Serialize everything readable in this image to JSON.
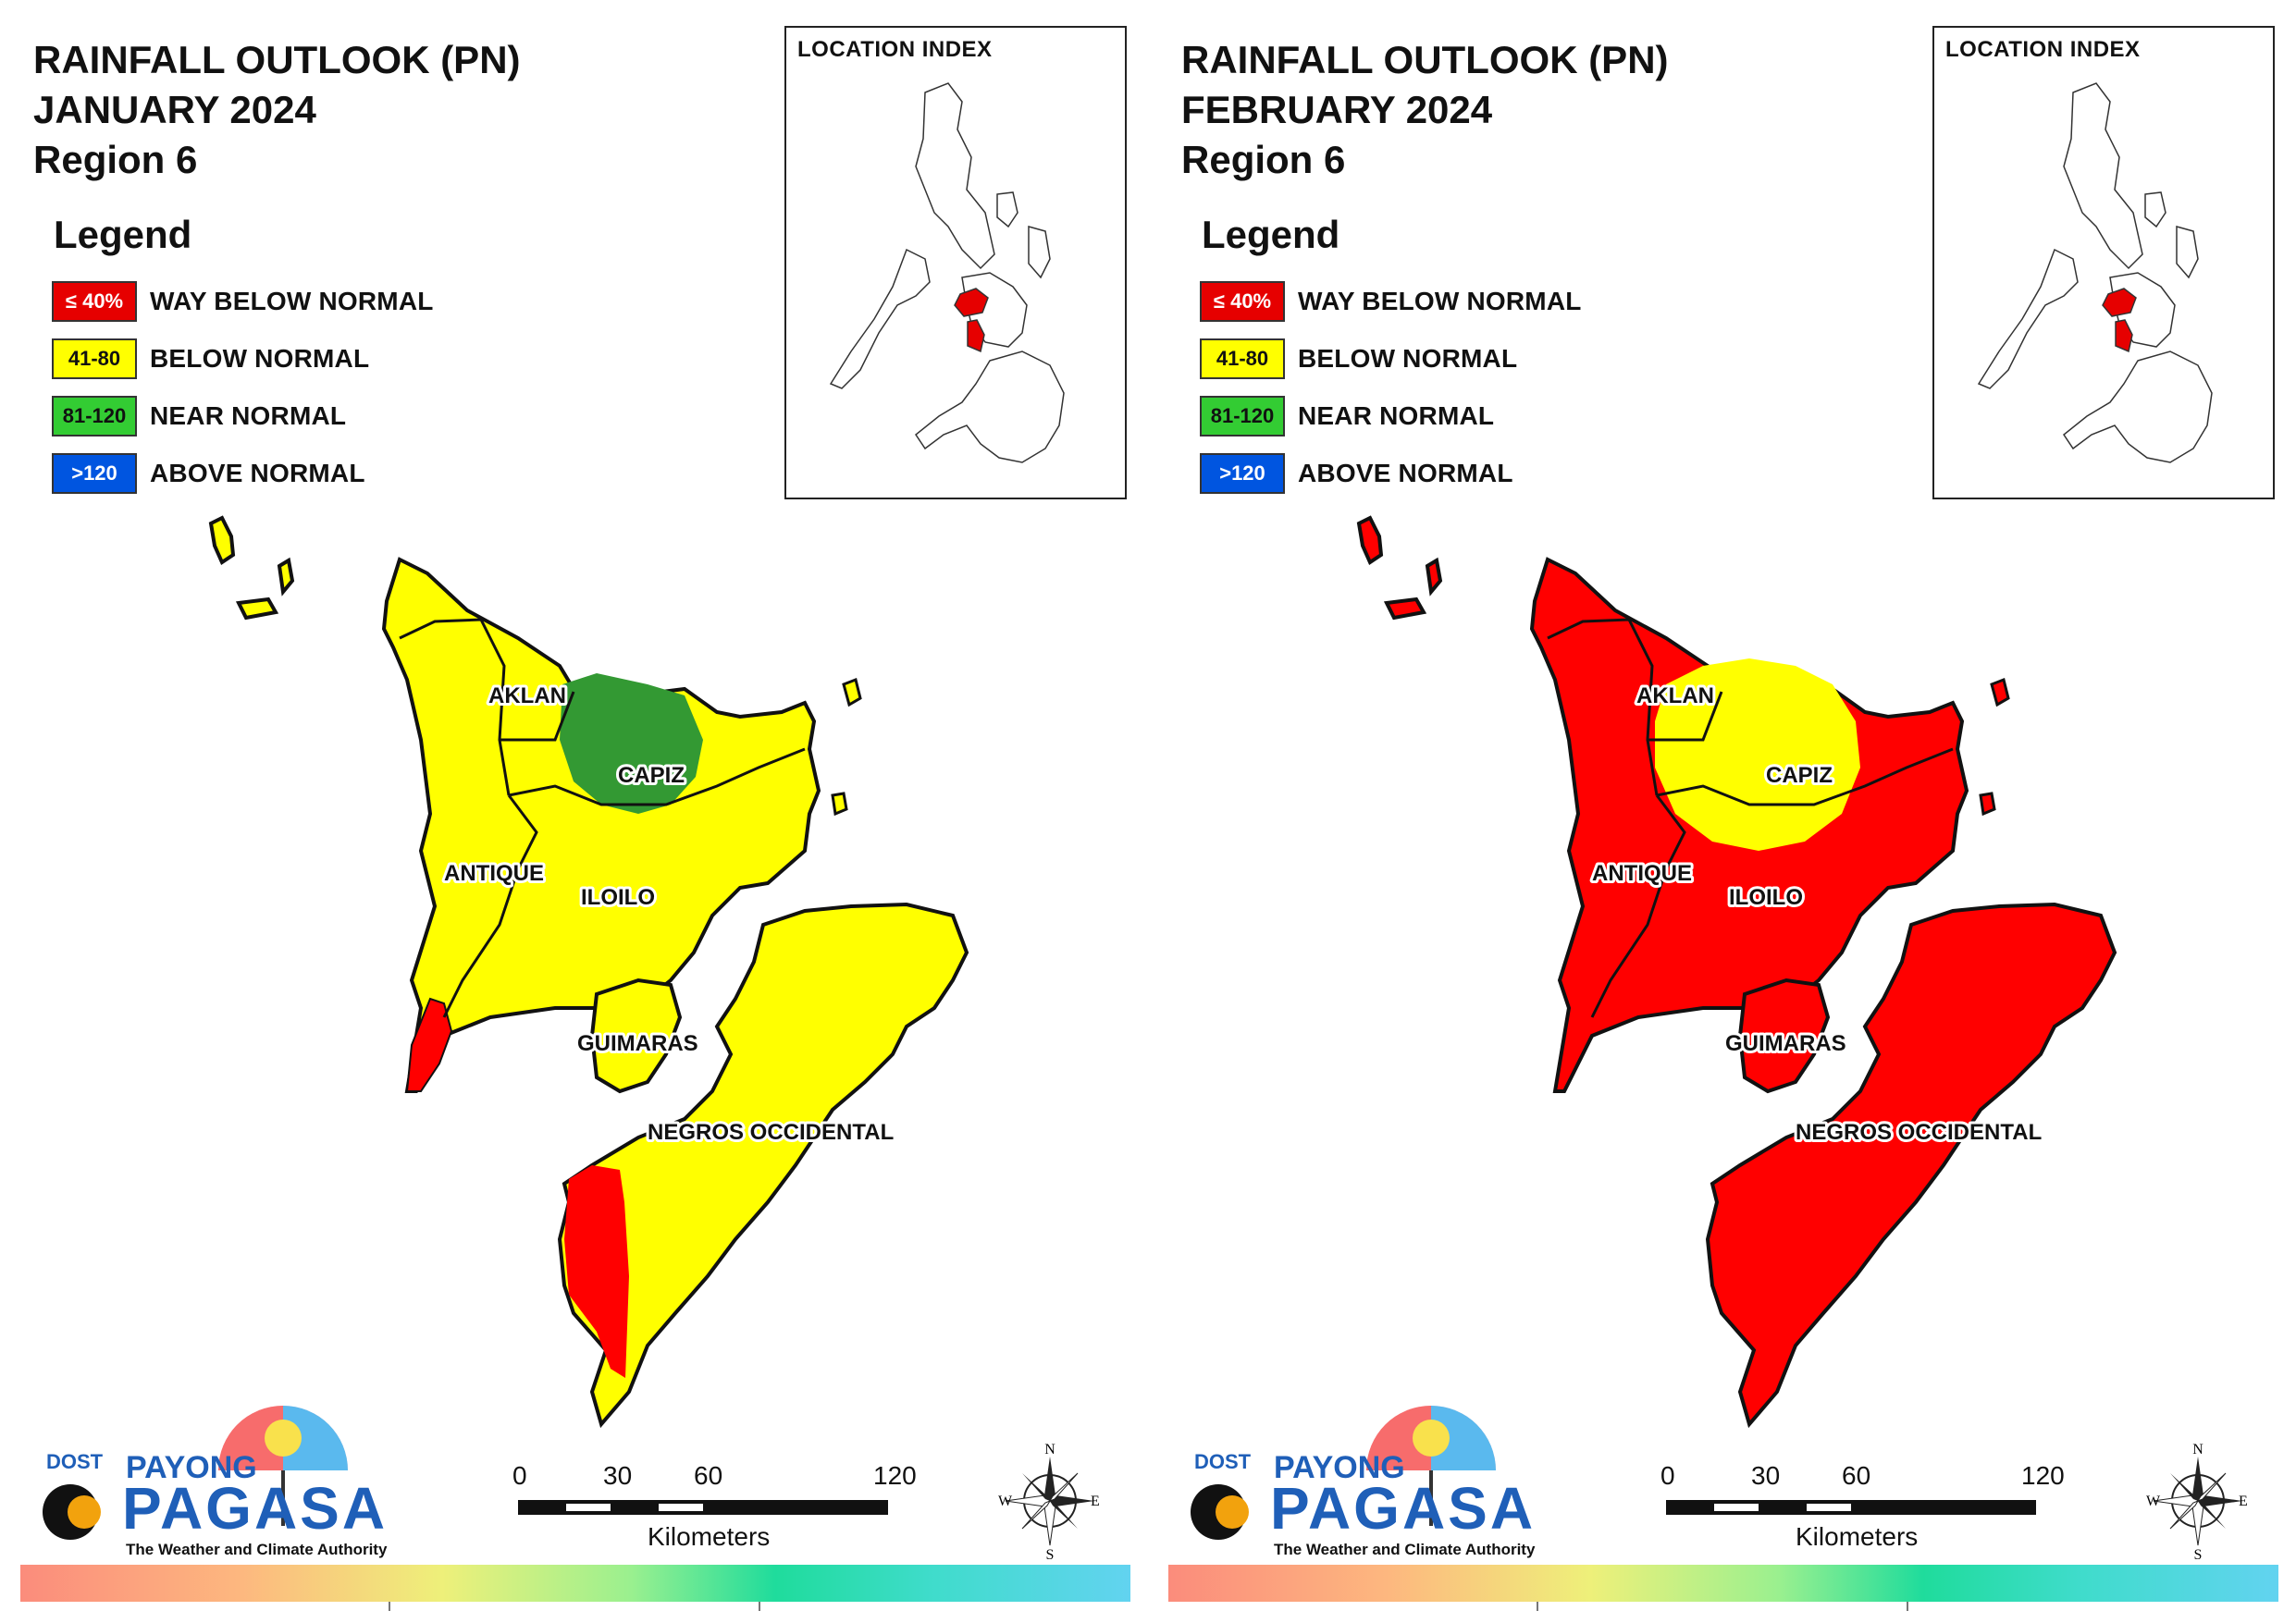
{
  "panels": [
    {
      "title_line1": "RAINFALL OUTLOOK (PN)",
      "title_line2": "JANUARY 2024",
      "title_line3": "Region 6",
      "legend_title": "Legend",
      "inset_title": "LOCATION INDEX",
      "provinces": {
        "aklan": "AKLAN",
        "capiz": "CAPIZ",
        "antique": "ANTIQUE",
        "iloilo": "ILOILO",
        "guimaras": "GUIMARAS",
        "negros": "NEGROS OCCIDENTAL"
      },
      "dominant_category": "below-normal",
      "colors": {
        "base": "#ffff00",
        "patch": "#339933",
        "accent": "#ff0000"
      }
    },
    {
      "title_line1": "RAINFALL OUTLOOK (PN)",
      "title_line2": "FEBRUARY 2024",
      "title_line3": "Region 6",
      "legend_title": "Legend",
      "inset_title": "LOCATION INDEX",
      "provinces": {
        "aklan": "AKLAN",
        "capiz": "CAPIZ",
        "antique": "ANTIQUE",
        "iloilo": "ILOILO",
        "guimaras": "GUIMARAS",
        "negros": "NEGROS OCCIDENTAL"
      },
      "dominant_category": "way-below-normal",
      "colors": {
        "base": "#ff0000",
        "patch": "#ffff00",
        "accent": "#ff0000"
      }
    }
  ],
  "legend": [
    {
      "range": "≤ 40%",
      "label": "WAY BELOW NORMAL",
      "color": "#e60000",
      "text_color": "#ffffff"
    },
    {
      "range": "41-80",
      "label": "BELOW NORMAL",
      "color": "#ffff00",
      "text_color": "#111111"
    },
    {
      "range": "81-120",
      "label": "NEAR NORMAL",
      "color": "#33cc33",
      "text_color": "#111111"
    },
    {
      "range": ">120",
      "label": "ABOVE NORMAL",
      "color": "#0055e0",
      "text_color": "#ffffff"
    }
  ],
  "scale": {
    "ticks": [
      "0",
      "30",
      "60",
      "120"
    ],
    "unit": "Kilometers"
  },
  "compass": {
    "n": "N",
    "e": "E",
    "s": "S",
    "w": "W"
  },
  "logo": {
    "dost": "DOST",
    "payong": "PAYONG",
    "pagasa": "PAGASA",
    "tagline": "The Weather and Climate Authority"
  }
}
